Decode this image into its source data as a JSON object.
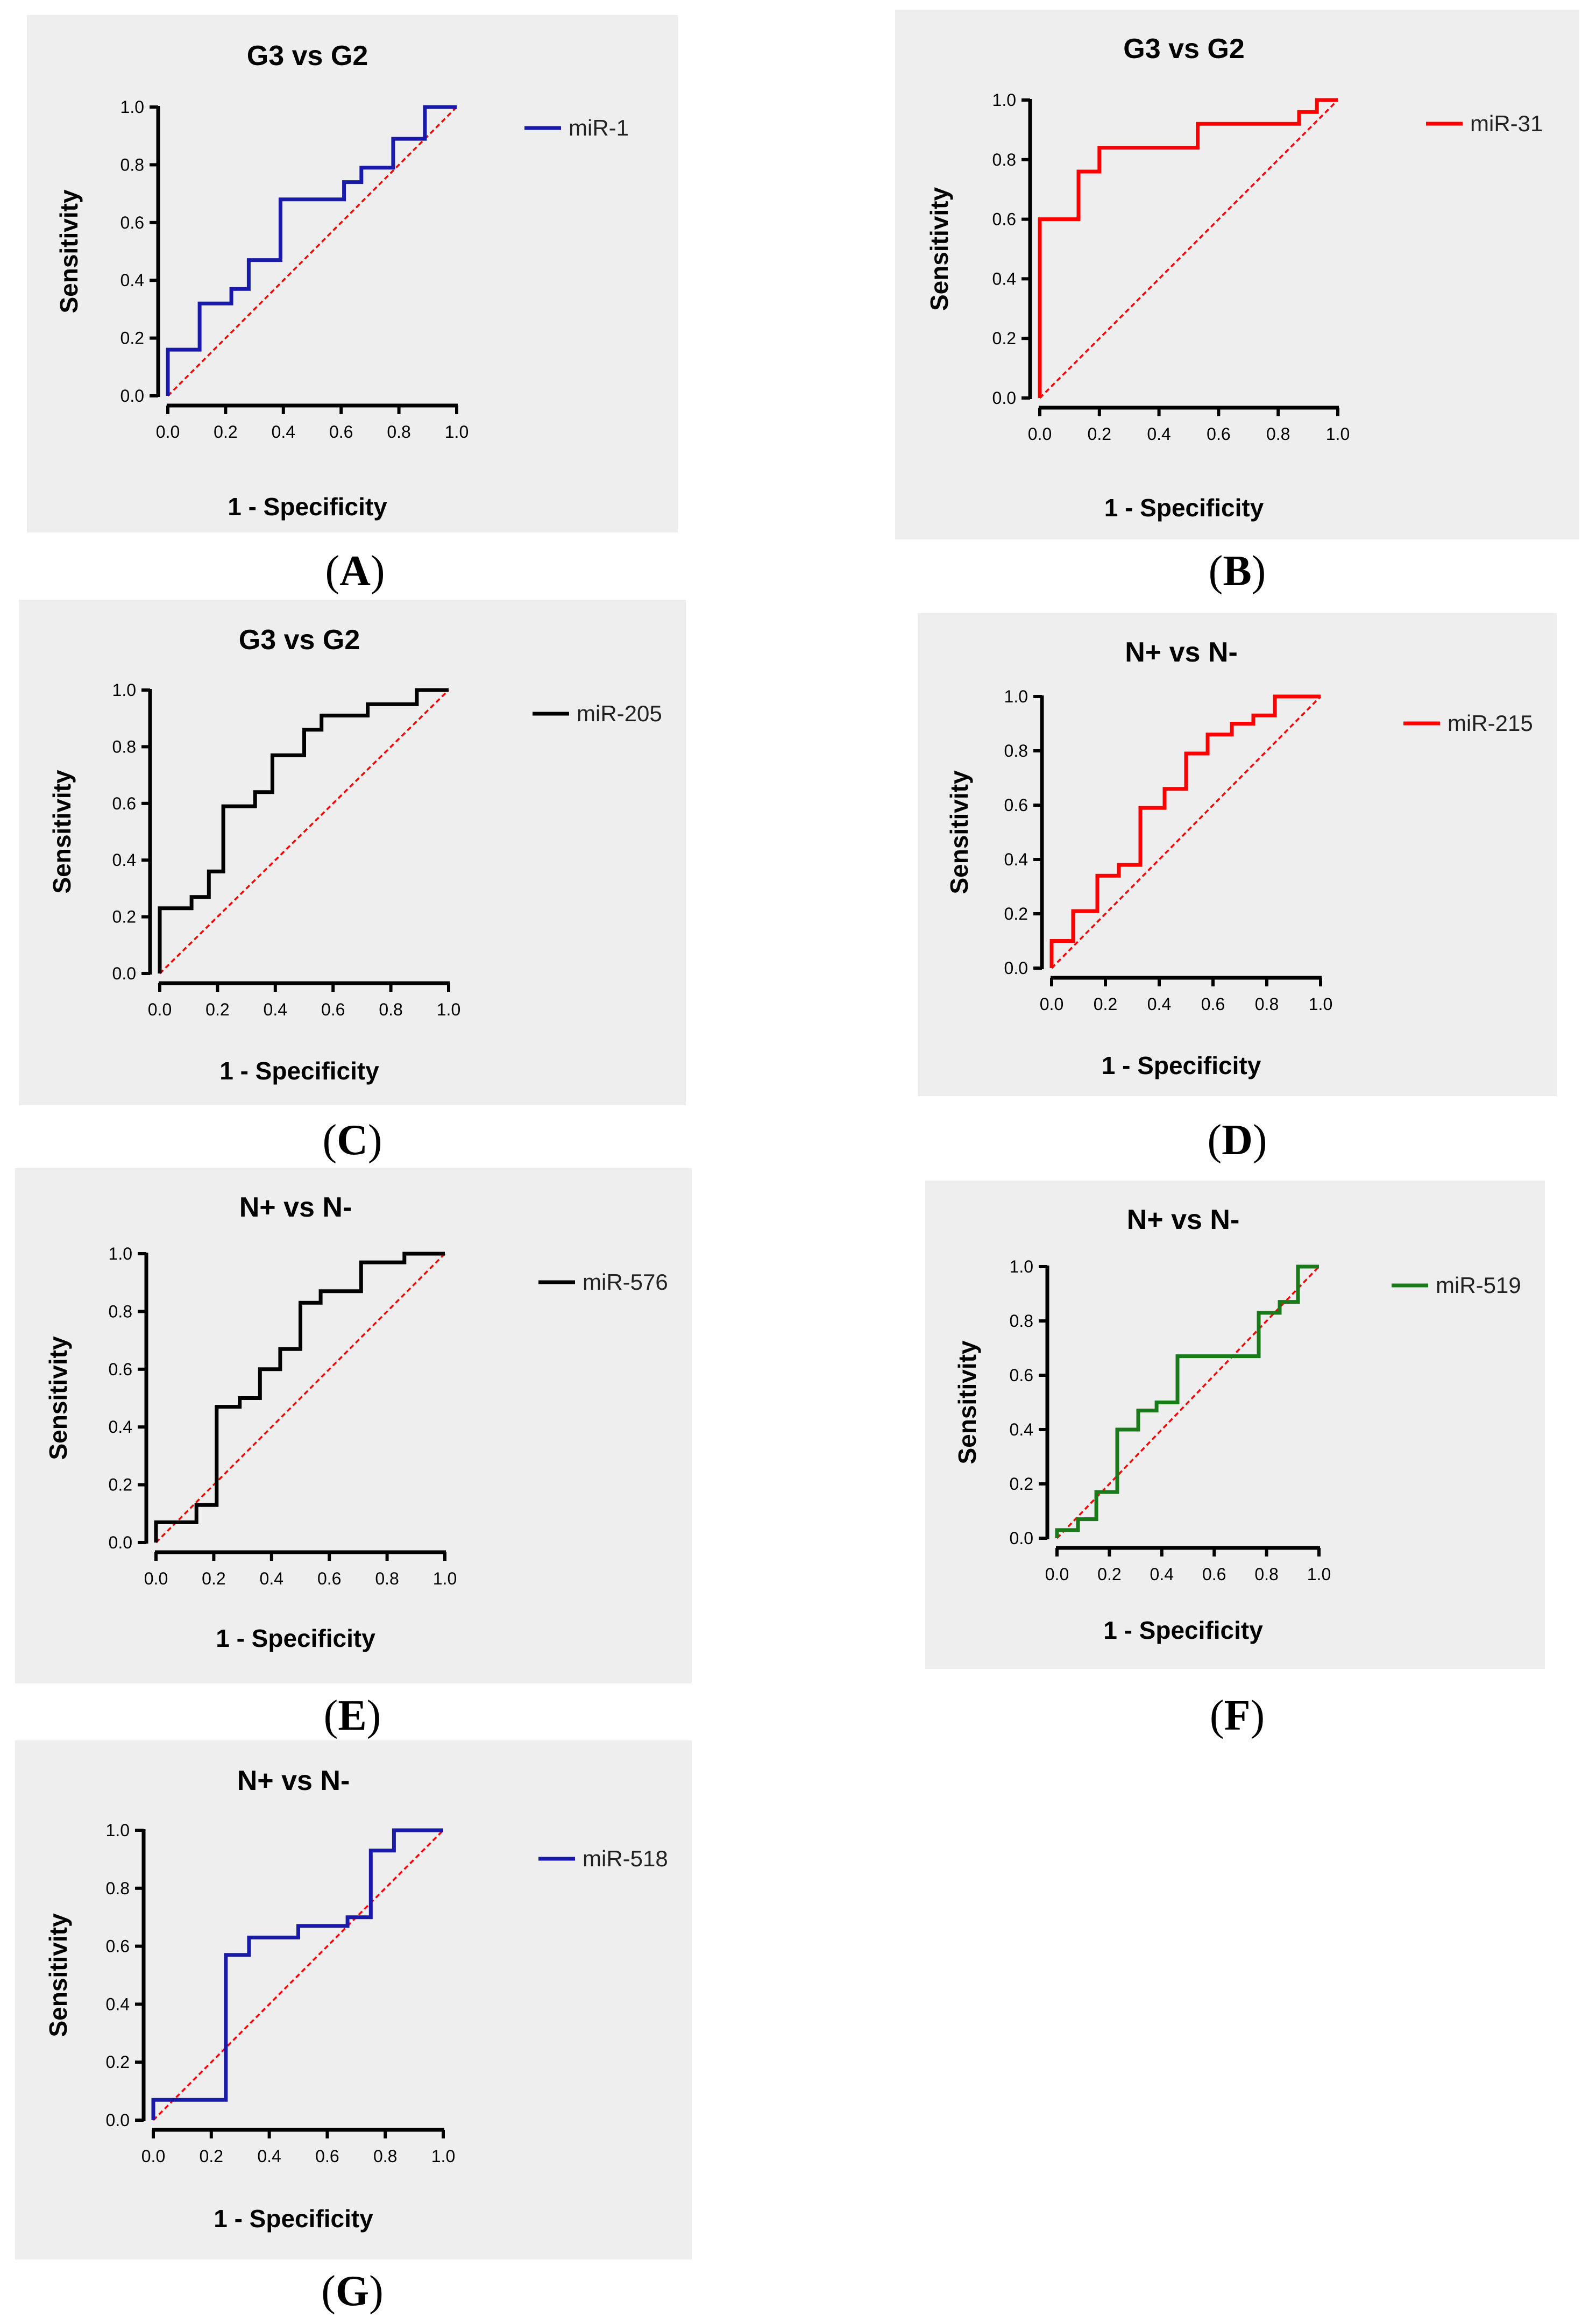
{
  "chart_data": [
    {
      "id": "A",
      "panel_label": "A",
      "type": "line",
      "roc": true,
      "title": "G3 vs G2",
      "xlabel": "1 - Specificity",
      "ylabel": "Sensitivity",
      "xlim": [
        0,
        1
      ],
      "ylim": [
        0,
        1
      ],
      "xticks": [
        "0.0",
        "0.2",
        "0.4",
        "0.6",
        "0.8",
        "1.0"
      ],
      "yticks": [
        "0.0",
        "0.2",
        "0.4",
        "0.6",
        "0.8",
        "1.0"
      ],
      "reference_line": {
        "from": [
          0,
          0
        ],
        "to": [
          1,
          1
        ],
        "color": "#ff0000",
        "style": "dashed"
      },
      "legend_position": "top-right",
      "series": [
        {
          "name": "miR-1",
          "color": "#1a1aaa",
          "x": [
            0,
            0,
            0.11,
            0.11,
            0.22,
            0.22,
            0.28,
            0.28,
            0.39,
            0.39,
            0.61,
            0.61,
            0.67,
            0.67,
            0.78,
            0.78,
            0.89,
            0.89,
            1
          ],
          "y": [
            0,
            0.16,
            0.16,
            0.32,
            0.32,
            0.37,
            0.37,
            0.47,
            0.47,
            0.68,
            0.68,
            0.74,
            0.74,
            0.79,
            0.79,
            0.89,
            0.89,
            1,
            1
          ]
        }
      ]
    },
    {
      "id": "B",
      "panel_label": "B",
      "type": "line",
      "roc": true,
      "title": "G3 vs G2",
      "xlabel": "1 - Specificity",
      "ylabel": "Sensitivity",
      "xlim": [
        0,
        1
      ],
      "ylim": [
        0,
        1
      ],
      "xticks": [
        "0.0",
        "0.2",
        "0.4",
        "0.6",
        "0.8",
        "1.0"
      ],
      "yticks": [
        "0.0",
        "0.2",
        "0.4",
        "0.6",
        "0.8",
        "1.0"
      ],
      "reference_line": {
        "from": [
          0,
          0
        ],
        "to": [
          1,
          1
        ],
        "color": "#ff0000",
        "style": "dashed"
      },
      "legend_position": "top-right",
      "series": [
        {
          "name": "miR-31",
          "color": "#ff0000",
          "x": [
            0,
            0,
            0.13,
            0.13,
            0.2,
            0.2,
            0.53,
            0.53,
            0.87,
            0.87,
            0.93,
            0.93,
            1
          ],
          "y": [
            0,
            0.6,
            0.6,
            0.76,
            0.76,
            0.84,
            0.84,
            0.92,
            0.92,
            0.96,
            0.96,
            1,
            1
          ]
        }
      ]
    },
    {
      "id": "C",
      "panel_label": "C",
      "type": "line",
      "roc": true,
      "title": "G3 vs G2",
      "xlabel": "1 - Specificity",
      "ylabel": "Sensitivity",
      "xlim": [
        0,
        1
      ],
      "ylim": [
        0,
        1
      ],
      "xticks": [
        "0.0",
        "0.2",
        "0.4",
        "0.6",
        "0.8",
        "1.0"
      ],
      "yticks": [
        "0.0",
        "0.2",
        "0.4",
        "0.6",
        "0.8",
        "1.0"
      ],
      "reference_line": {
        "from": [
          0,
          0
        ],
        "to": [
          1,
          1
        ],
        "color": "#ff0000",
        "style": "dashed"
      },
      "legend_position": "top-right",
      "series": [
        {
          "name": "miR-205",
          "color": "#000000",
          "x": [
            0,
            0,
            0.11,
            0.11,
            0.17,
            0.17,
            0.22,
            0.22,
            0.33,
            0.33,
            0.39,
            0.39,
            0.5,
            0.5,
            0.56,
            0.56,
            0.72,
            0.72,
            0.89,
            0.89,
            1
          ],
          "y": [
            0,
            0.23,
            0.23,
            0.27,
            0.27,
            0.36,
            0.36,
            0.59,
            0.59,
            0.64,
            0.64,
            0.77,
            0.77,
            0.86,
            0.86,
            0.91,
            0.91,
            0.95,
            0.95,
            1,
            1
          ]
        }
      ]
    },
    {
      "id": "D",
      "panel_label": "D",
      "type": "line",
      "roc": true,
      "title": "N+ vs N-",
      "xlabel": "1 - Specificity",
      "ylabel": "Sensitivity",
      "xlim": [
        0,
        1
      ],
      "ylim": [
        0,
        1
      ],
      "xticks": [
        "0.0",
        "0.2",
        "0.4",
        "0.6",
        "0.8",
        "1.0"
      ],
      "yticks": [
        "0.0",
        "0.2",
        "0.4",
        "0.6",
        "0.8",
        "1.0"
      ],
      "reference_line": {
        "from": [
          0,
          0
        ],
        "to": [
          1,
          1
        ],
        "color": "#ff0000",
        "style": "dashed"
      },
      "legend_position": "top-right",
      "series": [
        {
          "name": "miR-215",
          "color": "#ff0000",
          "x": [
            0,
            0,
            0.08,
            0.08,
            0.17,
            0.17,
            0.25,
            0.25,
            0.33,
            0.33,
            0.42,
            0.42,
            0.5,
            0.5,
            0.58,
            0.58,
            0.67,
            0.67,
            0.75,
            0.75,
            0.83,
            0.83,
            1
          ],
          "y": [
            0,
            0.1,
            0.1,
            0.21,
            0.21,
            0.34,
            0.34,
            0.38,
            0.38,
            0.59,
            0.59,
            0.66,
            0.66,
            0.79,
            0.79,
            0.86,
            0.86,
            0.9,
            0.9,
            0.93,
            0.93,
            1,
            1
          ]
        }
      ]
    },
    {
      "id": "E",
      "panel_label": "E",
      "type": "line",
      "roc": true,
      "title": "N+ vs N-",
      "xlabel": "1 - Specificity",
      "ylabel": "Sensitivity",
      "xlim": [
        0,
        1
      ],
      "ylim": [
        0,
        1
      ],
      "xticks": [
        "0.0",
        "0.2",
        "0.4",
        "0.6",
        "0.8",
        "1.0"
      ],
      "yticks": [
        "0.0",
        "0.2",
        "0.4",
        "0.6",
        "0.8",
        "1.0"
      ],
      "reference_line": {
        "from": [
          0,
          0
        ],
        "to": [
          1,
          1
        ],
        "color": "#ff0000",
        "style": "dashed"
      },
      "legend_position": "top-right",
      "series": [
        {
          "name": "miR-576",
          "color": "#000000",
          "x": [
            0,
            0,
            0.14,
            0.14,
            0.21,
            0.21,
            0.29,
            0.29,
            0.36,
            0.36,
            0.43,
            0.43,
            0.5,
            0.5,
            0.57,
            0.57,
            0.71,
            0.71,
            0.86,
            0.86,
            1
          ],
          "y": [
            0,
            0.07,
            0.07,
            0.13,
            0.13,
            0.47,
            0.47,
            0.5,
            0.5,
            0.6,
            0.6,
            0.67,
            0.67,
            0.83,
            0.83,
            0.87,
            0.87,
            0.97,
            0.97,
            1,
            1
          ]
        }
      ]
    },
    {
      "id": "F",
      "panel_label": "F",
      "type": "line",
      "roc": true,
      "title": "N+ vs N-",
      "xlabel": "1 - Specificity",
      "ylabel": "Sensitivity",
      "xlim": [
        0,
        1
      ],
      "ylim": [
        0,
        1
      ],
      "xticks": [
        "0.0",
        "0.2",
        "0.4",
        "0.6",
        "0.8",
        "1.0"
      ],
      "yticks": [
        "0.0",
        "0.2",
        "0.4",
        "0.6",
        "0.8",
        "1.0"
      ],
      "reference_line": {
        "from": [
          0,
          0
        ],
        "to": [
          1,
          1
        ],
        "color": "#ff0000",
        "style": "dashed"
      },
      "legend_position": "top-right",
      "series": [
        {
          "name": "miR-519",
          "color": "#1a7a1a",
          "x": [
            0,
            0,
            0.08,
            0.08,
            0.15,
            0.15,
            0.23,
            0.23,
            0.31,
            0.31,
            0.38,
            0.38,
            0.46,
            0.46,
            0.77,
            0.77,
            0.85,
            0.85,
            0.92,
            0.92,
            1
          ],
          "y": [
            0,
            0.03,
            0.03,
            0.07,
            0.07,
            0.17,
            0.17,
            0.4,
            0.4,
            0.47,
            0.47,
            0.5,
            0.5,
            0.67,
            0.67,
            0.83,
            0.83,
            0.87,
            0.87,
            1,
            1
          ]
        }
      ]
    },
    {
      "id": "G",
      "panel_label": "G",
      "type": "line",
      "roc": true,
      "title": "N+ vs N-",
      "xlabel": "1 - Specificity",
      "ylabel": "Sensitivity",
      "xlim": [
        0,
        1
      ],
      "ylim": [
        0,
        1
      ],
      "xticks": [
        "0.0",
        "0.2",
        "0.4",
        "0.6",
        "0.8",
        "1.0"
      ],
      "yticks": [
        "0.0",
        "0.2",
        "0.4",
        "0.6",
        "0.8",
        "1.0"
      ],
      "reference_line": {
        "from": [
          0,
          0
        ],
        "to": [
          1,
          1
        ],
        "color": "#ff0000",
        "style": "dashed"
      },
      "legend_position": "top-right",
      "series": [
        {
          "name": "miR-518",
          "color": "#1a1aaa",
          "x": [
            0,
            0,
            0.25,
            0.25,
            0.33,
            0.33,
            0.5,
            0.5,
            0.67,
            0.67,
            0.75,
            0.75,
            0.83,
            0.83,
            1
          ],
          "y": [
            0,
            0.07,
            0.07,
            0.57,
            0.57,
            0.63,
            0.63,
            0.67,
            0.67,
            0.7,
            0.7,
            0.93,
            0.93,
            1,
            1
          ]
        }
      ]
    }
  ]
}
